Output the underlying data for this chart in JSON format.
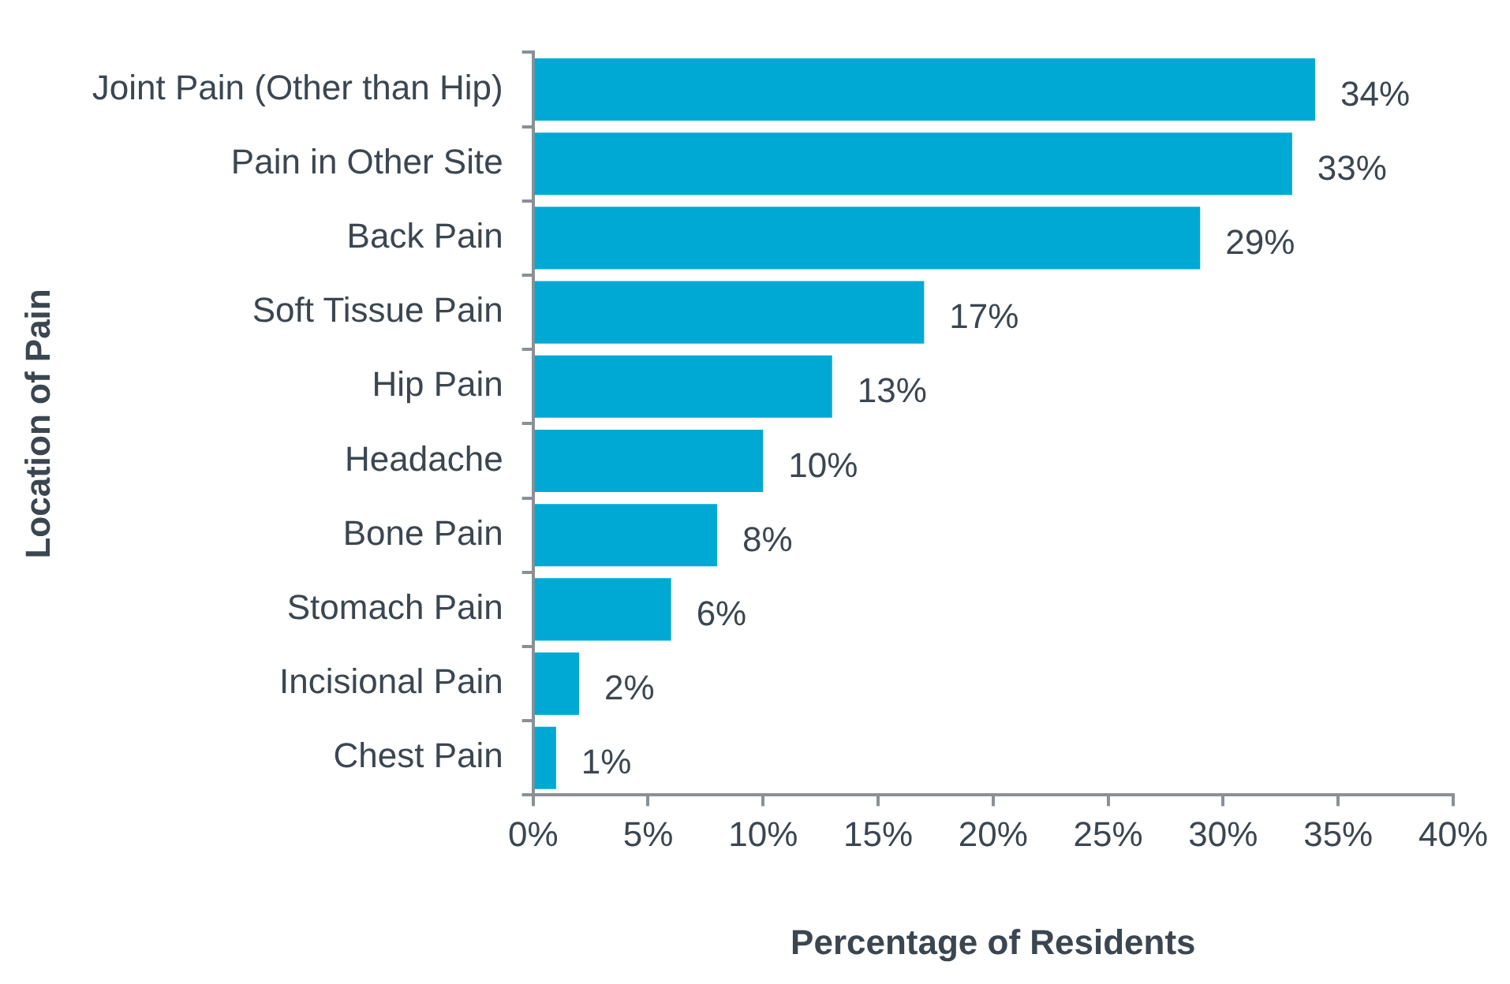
{
  "chart_data": {
    "type": "bar",
    "orientation": "horizontal",
    "xlabel": "Percentage of Residents",
    "ylabel": "Location of Pain",
    "categories": [
      "Joint Pain (Other than Hip)",
      "Pain in Other Site",
      "Back Pain",
      "Soft Tissue Pain",
      "Hip Pain",
      "Headache",
      "Bone Pain",
      "Stomach Pain",
      "Incisional Pain",
      "Chest Pain"
    ],
    "values": [
      34,
      33,
      29,
      17,
      13,
      10,
      8,
      6,
      2,
      1
    ],
    "value_labels": [
      "34%",
      "33%",
      "29%",
      "17%",
      "13%",
      "10%",
      "8%",
      "6%",
      "2%",
      "1%"
    ],
    "color": "#00a9d4",
    "xlim": [
      0,
      40
    ],
    "xticks": [
      {
        "value": 0,
        "label": "0%"
      },
      {
        "value": 5,
        "label": "5%"
      },
      {
        "value": 10,
        "label": "10%"
      },
      {
        "value": 15,
        "label": "15%"
      },
      {
        "value": 20,
        "label": "20%"
      },
      {
        "value": 25,
        "label": "25%"
      },
      {
        "value": 30,
        "label": "30%"
      },
      {
        "value": 35,
        "label": "35%"
      },
      {
        "value": 40,
        "label": "40%"
      }
    ],
    "grid": false,
    "legend": false
  }
}
